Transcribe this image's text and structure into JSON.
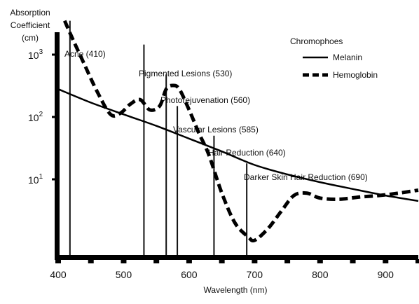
{
  "chart_data": {
    "type": "line",
    "ylabel_lines": [
      "Absorption",
      "Coefficient",
      "(cm)"
    ],
    "xlabel": "Wavelength (nm)",
    "xlim": [
      400,
      950
    ],
    "ylog": true,
    "ylim": [
      1,
      10000
    ],
    "x_ticks": [
      400,
      500,
      600,
      700,
      800,
      900
    ],
    "x_tick_labels": [
      "400",
      "500",
      "600",
      "700",
      "800",
      "900"
    ],
    "y_ticks": [
      {
        "value": 10,
        "base": "10",
        "exp": "1"
      },
      {
        "value": 100,
        "base": "10",
        "exp": "2"
      },
      {
        "value": 1000,
        "base": "10",
        "exp": "3"
      }
    ],
    "legend": {
      "title": "Chromophoes",
      "position": "top-right",
      "entries": [
        {
          "name": "Melanin",
          "style": "solid"
        },
        {
          "name": "Hemoglobin",
          "style": "dashed"
        }
      ]
    },
    "series": [
      {
        "name": "Melanin",
        "style": "solid",
        "color": "#000000",
        "x": [
          400,
          450,
          500,
          550,
          600,
          650,
          700,
          750,
          800,
          850,
          900,
          950
        ],
        "values": [
          280,
          170,
          110,
          72,
          45,
          28,
          17,
          12,
          9,
          7,
          5.5,
          4.5
        ]
      },
      {
        "name": "Hemoglobin",
        "style": "dashed",
        "color": "#000000",
        "x": [
          410,
          420,
          440,
          460,
          480,
          495,
          510,
          525,
          540,
          555,
          565,
          575,
          585,
          600,
          615,
          630,
          650,
          670,
          690,
          700,
          720,
          740,
          760,
          780,
          800,
          830,
          860,
          890,
          920,
          950
        ],
        "values": [
          3500,
          2000,
          700,
          250,
          110,
          115,
          160,
          190,
          130,
          150,
          280,
          320,
          280,
          130,
          55,
          25,
          6,
          2,
          1.2,
          1.05,
          1.6,
          3,
          5.5,
          6,
          5,
          4.8,
          5.2,
          5.5,
          6,
          6.7
        ]
      }
    ],
    "annotations": [
      {
        "label": "Acne (410)",
        "wavelength": 418,
        "top": 3500
      },
      {
        "label": "Pigmented Lesions (530)",
        "wavelength": 531,
        "top": 1450
      },
      {
        "label": "Photorejuvenation (560)",
        "wavelength": 565,
        "top": 480
      },
      {
        "label": "Vascular Lesions (585)",
        "wavelength": 582,
        "top": 150
      },
      {
        "label": "Hair Reduction (640)",
        "wavelength": 638,
        "top": 50
      },
      {
        "label": "Darker Skin Hair Reduction (690)",
        "wavelength": 688,
        "top": 18
      }
    ]
  }
}
